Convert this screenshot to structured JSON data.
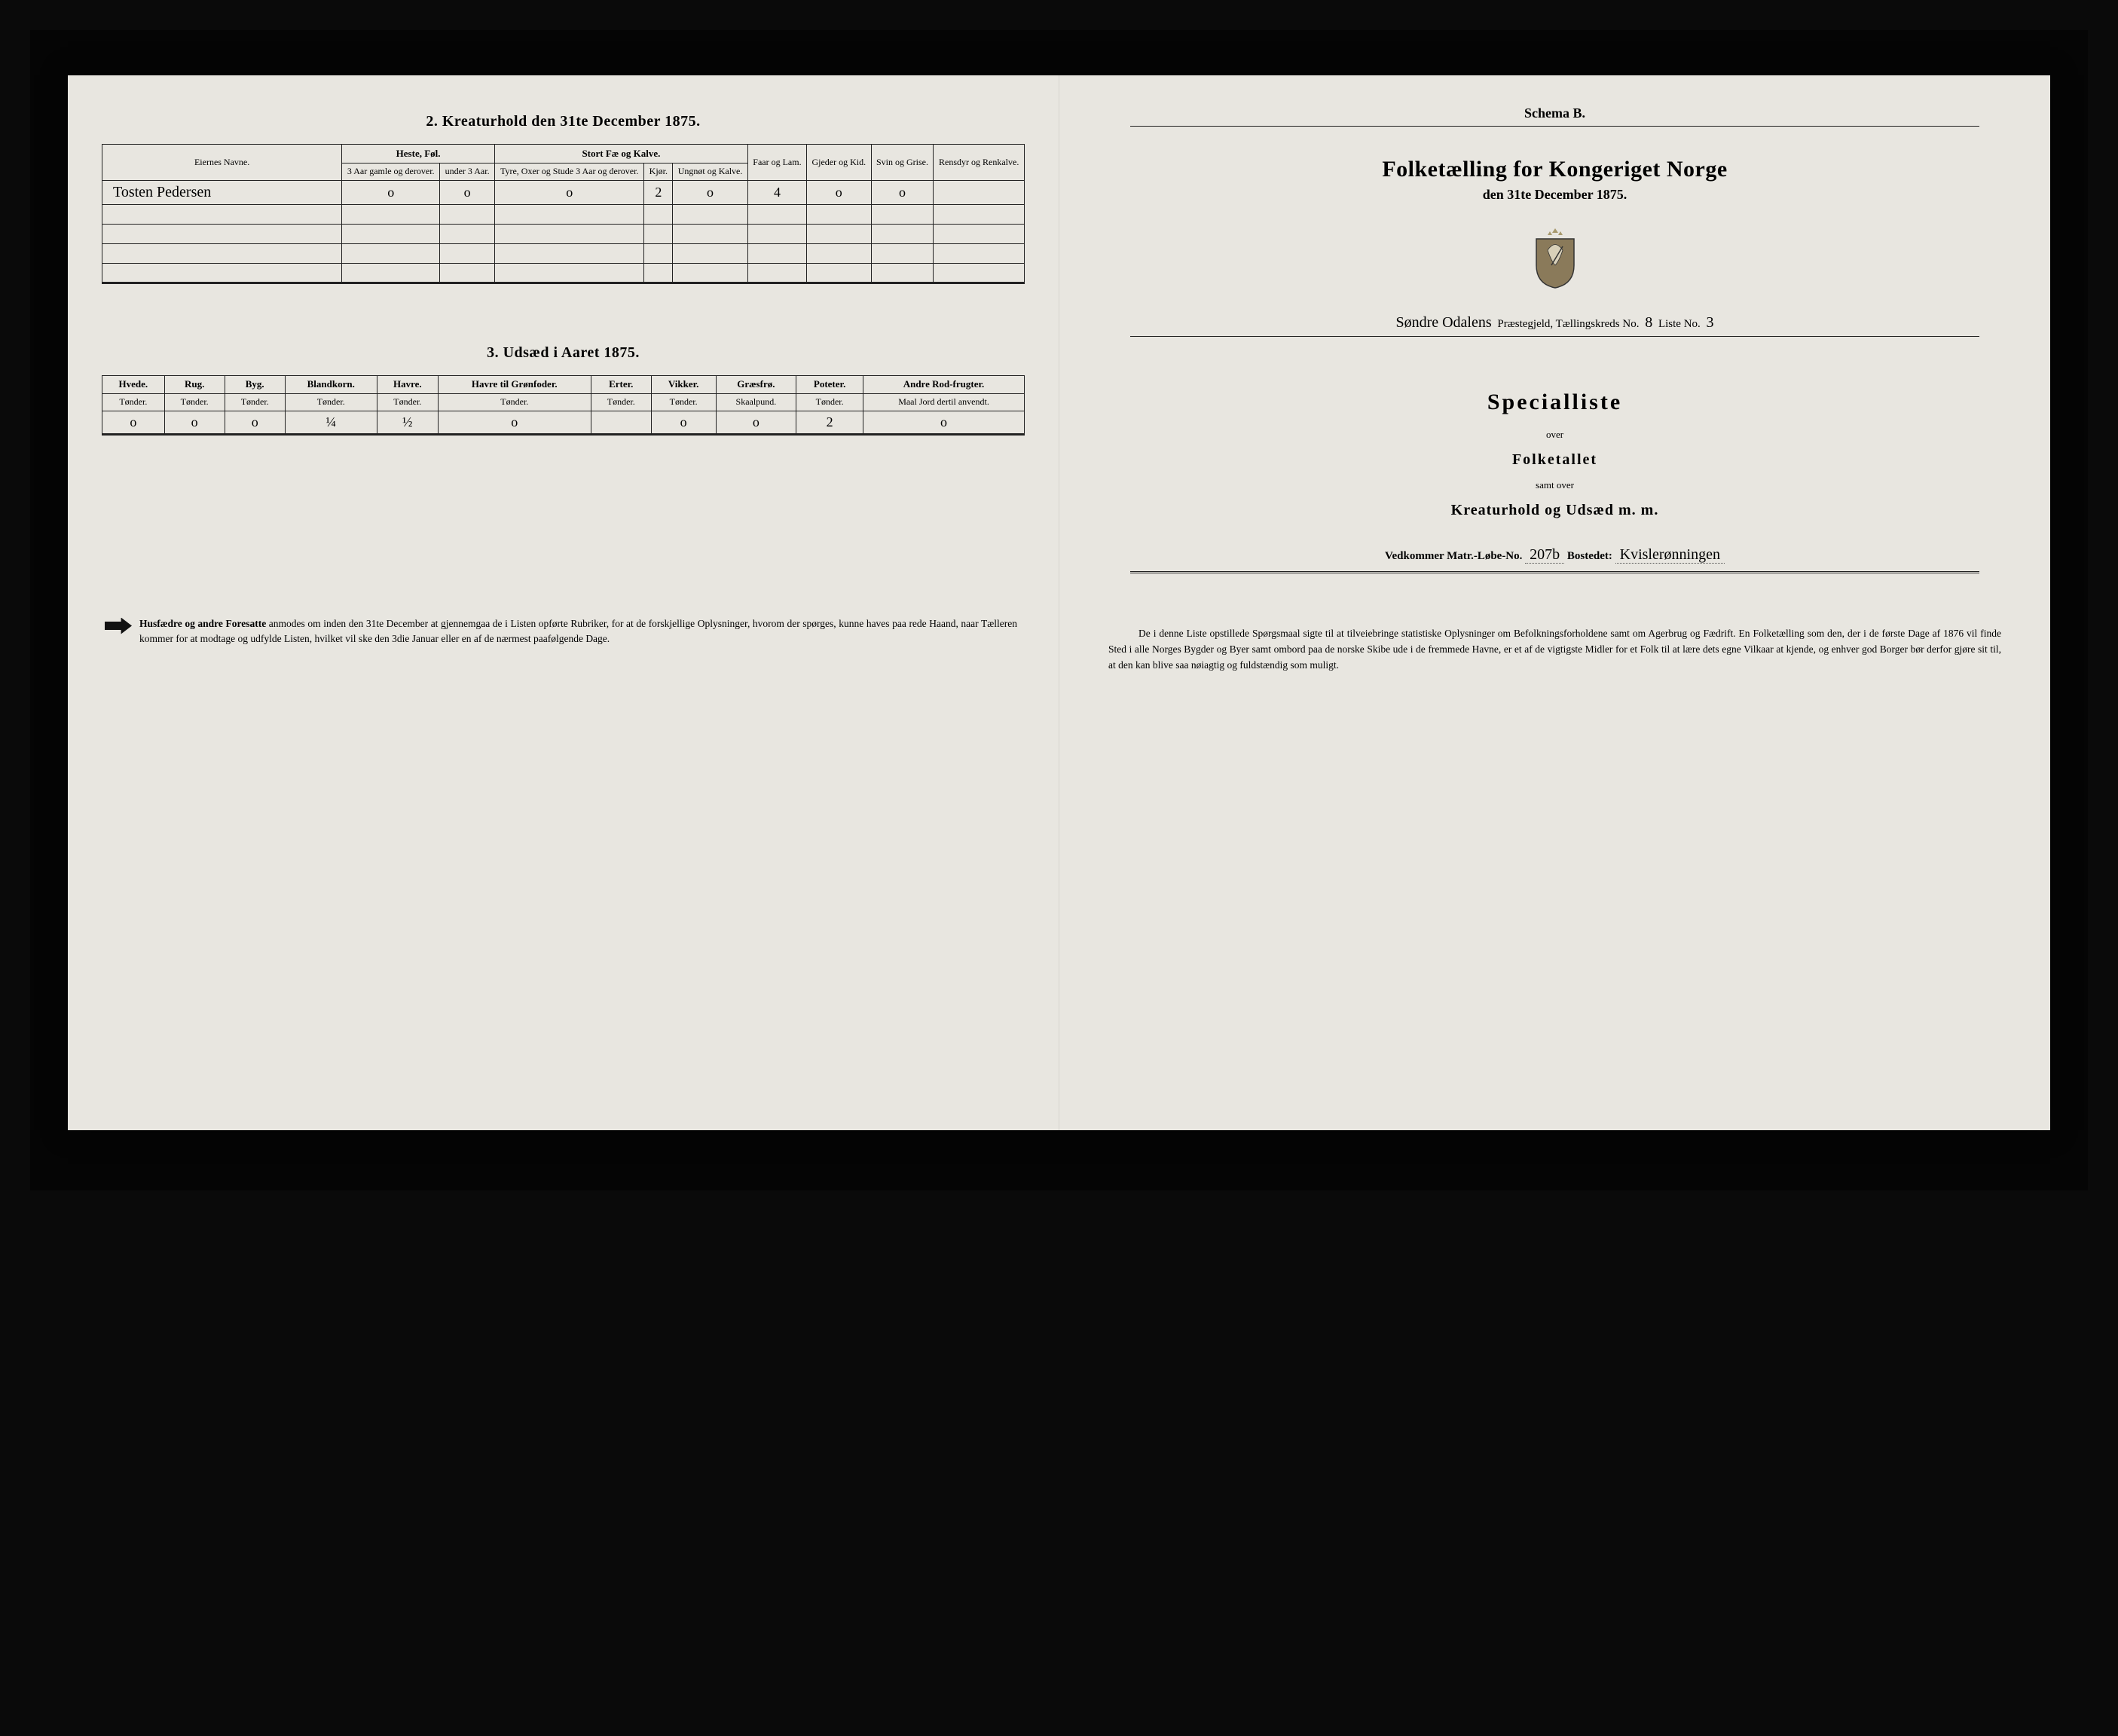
{
  "colors": {
    "paper": "#e8e6e0",
    "ink": "#1a1a1a",
    "frame": "#0a0a0a",
    "bleed": "rgba(0,0,0,0.06)"
  },
  "left_page": {
    "section2": {
      "title": "2.  Kreaturhold den 31te December 1875.",
      "col_owner": "Eiernes Navne.",
      "group_heste": "Heste, Føl.",
      "group_stort": "Stort Fæ og Kalve.",
      "col_heste_a": "3 Aar gamle og derover.",
      "col_heste_b": "under 3 Aar.",
      "col_stort_a": "Tyre, Oxer og Stude 3 Aar og derover.",
      "col_stort_b": "Kjør.",
      "col_stort_c": "Ungnøt og Kalve.",
      "col_faar": "Faar og Lam.",
      "col_gjeder": "Gjeder og Kid.",
      "col_svin": "Svin og Grise.",
      "col_ren": "Rensdyr og Renkalve.",
      "row": {
        "name": "Tosten Pedersen",
        "heste_a": "o",
        "heste_b": "o",
        "stort_a": "o",
        "stort_b": "2",
        "stort_c": "o",
        "faar": "4",
        "gjeder": "o",
        "svin": "o",
        "ren": ""
      }
    },
    "section3": {
      "title": "3.  Udsæd i Aaret 1875.",
      "cols": [
        {
          "h": "Hvede.",
          "s": "Tønder."
        },
        {
          "h": "Rug.",
          "s": "Tønder."
        },
        {
          "h": "Byg.",
          "s": "Tønder."
        },
        {
          "h": "Blandkorn.",
          "s": "Tønder."
        },
        {
          "h": "Havre.",
          "s": "Tønder."
        },
        {
          "h": "Havre til Grønfoder.",
          "s": "Tønder."
        },
        {
          "h": "Erter.",
          "s": "Tønder."
        },
        {
          "h": "Vikker.",
          "s": "Tønder."
        },
        {
          "h": "Græsfrø.",
          "s": "Skaalpund."
        },
        {
          "h": "Poteter.",
          "s": "Tønder."
        },
        {
          "h": "Andre Rod-frugter.",
          "s": "Maal Jord dertil anvendt."
        }
      ],
      "row": [
        "o",
        "o",
        "o",
        "¼",
        "½",
        "o",
        "",
        "o",
        "o",
        "2",
        "o"
      ]
    },
    "footer": "Husfædre og andre Foresatte anmodes om inden den 31te December at gjennemgaa de i Listen opførte Rubriker, for at de forskjellige Oplysninger, hvorom der spørges, kunne haves paa rede Haand, naar Tælleren kommer for at modtage og udfylde Listen, hvilket vil ske den 3die Januar eller en af de nærmest paafølgende Dage."
  },
  "right_page": {
    "schema": "Schema B.",
    "title": "Folketælling for Kongeriget Norge",
    "date": "den 31te December 1875.",
    "parish_prefix": "Søndre Odalens",
    "parish_label1": " Præstegjeld, Tællingskreds No. ",
    "kreds_no": "8",
    "liste_label": "     Liste No. ",
    "liste_no": "3",
    "special_title": "Specialliste",
    "over": "over",
    "folketallet": "Folketallet",
    "samt_over": "samt over",
    "kreatur": "Kreaturhold og Udsæd m. m.",
    "matr_label": "Vedkommer Matr.-Løbe-No. ",
    "matr_no": "207b",
    "bosted_label": "   Bostedet: ",
    "bosted": "Kvislerønningen",
    "footer": "De i denne Liste opstillede Spørgsmaal sigte til at tilveiebringe statistiske Oplysninger om Befolkningsforholdene samt om Agerbrug og Fædrift.  En Folketælling som den, der i de første Dage af 1876 vil finde Sted i alle Norges Bygder og Byer samt ombord paa de norske Skibe ude i de fremmede Havne, er et af de vigtigste Midler for et Folk til at lære dets egne Vilkaar at kjende, og enhver god Borger bør derfor gjøre sit til, at den kan blive saa nøiagtig og fuldstændig som muligt."
  }
}
